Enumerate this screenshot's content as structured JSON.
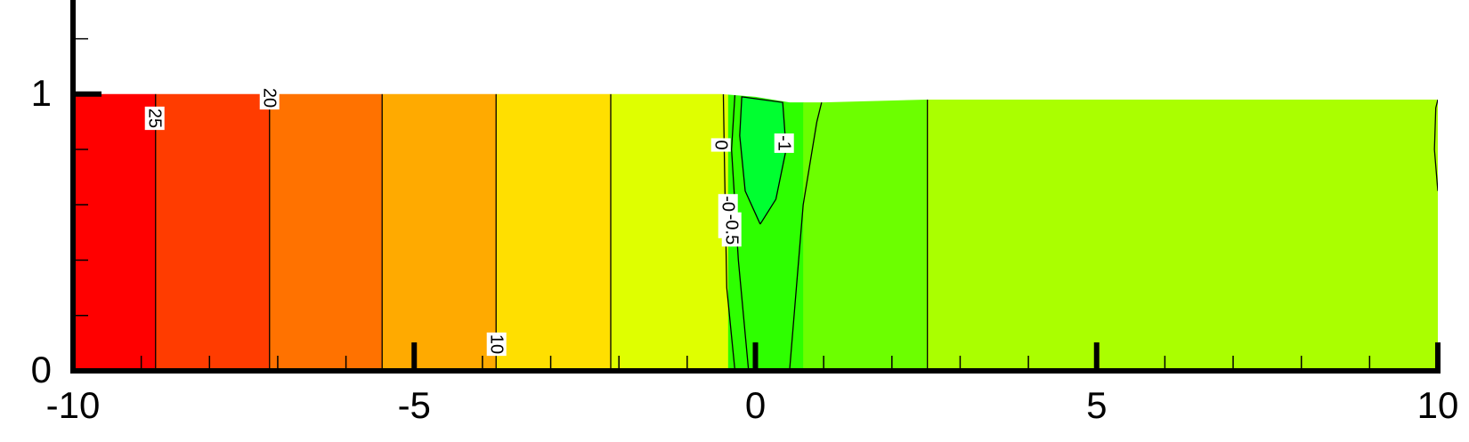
{
  "chart_data": {
    "type": "contour",
    "xlim": [
      -10,
      10
    ],
    "ylim": [
      0,
      1.34
    ],
    "xticks": [
      -10,
      -5,
      0,
      5,
      10
    ],
    "yticks": [
      0,
      1
    ],
    "xminorticks": [
      -9,
      -8,
      -7,
      -6,
      -4,
      -3,
      -2,
      -1,
      1,
      2,
      3,
      4,
      6,
      7,
      8,
      9
    ],
    "yminorticks": [
      0.2,
      0.4,
      0.6,
      0.8,
      1.2
    ],
    "surface": {
      "x": [
        -10,
        -0.5,
        0,
        0.5,
        1,
        2.5,
        10
      ],
      "y": [
        1,
        1,
        0.99,
        0.97,
        0.97,
        0.98,
        0.98
      ]
    },
    "band_edges": [
      -10,
      -8.79,
      -7.12,
      -5.47,
      -3.8,
      -2.12,
      -0.4,
      0.7,
      2.52,
      10
    ],
    "band_colors": [
      "#ff0000",
      "#ff3c00",
      "#ff7200",
      "#ffaa00",
      "#ffdf00",
      "#dfff00",
      "#2eff00",
      "#6cff00",
      "#aaff00"
    ],
    "contours": [
      {
        "label": 25,
        "x": [
          -8.79,
          -8.79
        ],
        "y": [
          0,
          1
        ]
      },
      {
        "label": 20,
        "x": [
          -7.12,
          -7.12
        ],
        "y": [
          0,
          1
        ]
      },
      {
        "x": [
          -5.47,
          -5.47
        ],
        "y": [
          0,
          1
        ]
      },
      {
        "label": 10,
        "x": [
          -3.8,
          -3.8
        ],
        "y": [
          0,
          1
        ]
      },
      {
        "x": [
          -2.12,
          -2.12
        ],
        "y": [
          0,
          1
        ]
      },
      {
        "label": 0,
        "x": [
          -0.3,
          -0.42,
          -0.45,
          -0.47
        ],
        "y": [
          0,
          0.3,
          0.7,
          1
        ]
      },
      {
        "label": -0.15,
        "x": [
          -0.1,
          -0.25,
          -0.35,
          -0.3
        ],
        "y": [
          0,
          0.4,
          0.8,
          1
        ]
      },
      {
        "label": -0.5,
        "x": [
          0.5,
          0.6,
          0.7,
          0.9,
          0.97
        ],
        "y": [
          0,
          0.3,
          0.6,
          0.9,
          0.97
        ]
      },
      {
        "label": -1,
        "fill": "#00ff30",
        "x": [
          0.07,
          -0.15,
          -0.23,
          -0.2,
          0.1,
          0.4,
          0.45,
          0.3,
          0.07
        ],
        "y": [
          0.53,
          0.65,
          0.85,
          0.99,
          0.98,
          0.97,
          0.8,
          0.62,
          0.53
        ]
      },
      {
        "x": [
          2.52,
          2.52
        ],
        "y": [
          0,
          0.98
        ]
      },
      {
        "x": [
          10,
          9.95,
          9.97,
          10
        ],
        "y": [
          0.65,
          0.8,
          0.95,
          0.98
        ]
      }
    ]
  }
}
